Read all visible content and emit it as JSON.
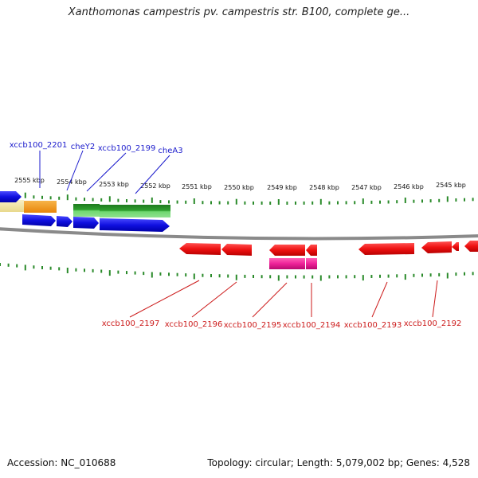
{
  "title": "Xanthomonas campestris pv. campestris str. B100, complete ge...",
  "footer": {
    "accession": "Accession: NC_010688",
    "summary": "Topology: circular; Length: 5,079,002 bp; Genes: 4,528"
  },
  "colors": {
    "label_top": "#1a1acc",
    "label_bottom": "#cc1a1a",
    "tick": "#2a8a2a",
    "blue_gene": "#1010e0",
    "green_gene": "#2a9a2a",
    "red_gene": "#ee1111",
    "magenta_gene": "#ee2299",
    "orange_gene": "#f39a1a",
    "pale_gene": "#f1e6a8",
    "backbone": "#8a8a8a"
  },
  "scale": {
    "unit": "kbp",
    "ticks": [
      {
        "label": "2555 kbp"
      },
      {
        "label": "2554 kbp"
      },
      {
        "label": "2553 kbp"
      },
      {
        "label": "2552 kbp"
      },
      {
        "label": "2551 kbp"
      },
      {
        "label": "2550 kbp"
      },
      {
        "label": "2549 kbp"
      },
      {
        "label": "2548 kbp"
      },
      {
        "label": "2547 kbp"
      },
      {
        "label": "2546 kbp"
      },
      {
        "label": "2545 kbp"
      }
    ]
  },
  "top_labels": [
    {
      "text": "xccb100_2201"
    },
    {
      "text": "cheY2"
    },
    {
      "text": "xccb100_2199"
    },
    {
      "text": "cheA3"
    }
  ],
  "bottom_labels": [
    {
      "text": "xccb100_2197"
    },
    {
      "text": "xccb100_2196"
    },
    {
      "text": "xccb100_2195"
    },
    {
      "text": "xccb100_2194"
    },
    {
      "text": "xccb100_2193"
    },
    {
      "text": "xccb100_2192"
    }
  ]
}
